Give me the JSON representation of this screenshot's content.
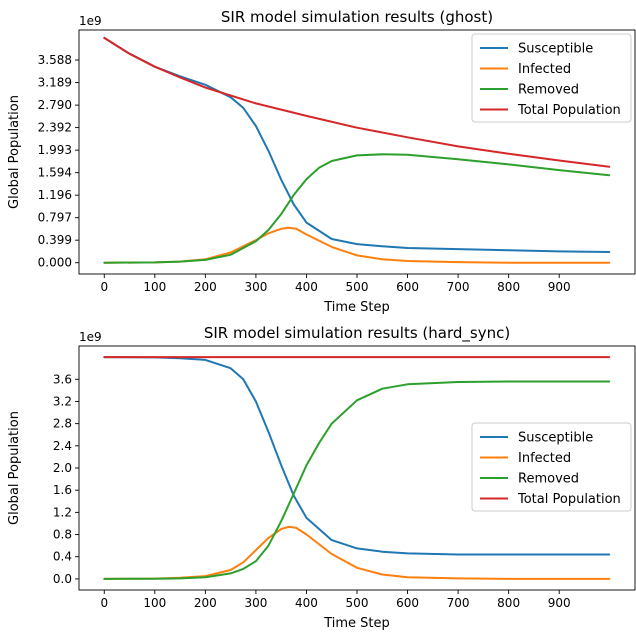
{
  "chart_data": [
    {
      "type": "line",
      "title": "SIR model simulation results (ghost)",
      "xlabel": "Time Step",
      "ylabel": "Global Population",
      "y_offset_label": "1e9",
      "xlim": [
        -50,
        1050
      ],
      "ylim": [
        -0.2,
        4.12
      ],
      "x_ticks": [
        0,
        100,
        200,
        300,
        400,
        500,
        600,
        700,
        800,
        900
      ],
      "y_ticks": [
        0.0,
        0.399,
        0.797,
        1.196,
        1.594,
        1.993,
        2.392,
        2.79,
        3.189,
        3.588
      ],
      "y_tick_labels": [
        "0.000",
        "0.399",
        "0.797",
        "1.196",
        "1.594",
        "1.993",
        "2.392",
        "2.790",
        "3.189",
        "3.588"
      ],
      "legend_position": "top-right",
      "series": [
        {
          "name": "Susceptible",
          "color": "#1f77b4",
          "x": [
            0,
            50,
            100,
            150,
            200,
            250,
            275,
            300,
            325,
            350,
            375,
            400,
            450,
            500,
            550,
            600,
            700,
            800,
            900,
            999
          ],
          "y": [
            3.98,
            3.7,
            3.47,
            3.3,
            3.15,
            2.93,
            2.74,
            2.42,
            1.98,
            1.47,
            1.03,
            0.71,
            0.42,
            0.33,
            0.29,
            0.26,
            0.24,
            0.22,
            0.2,
            0.19
          ]
        },
        {
          "name": "Infected",
          "color": "#ff7f0e",
          "x": [
            0,
            100,
            150,
            200,
            250,
            300,
            325,
            350,
            365,
            380,
            400,
            450,
            500,
            550,
            600,
            700,
            800,
            900,
            999
          ],
          "y": [
            0.0,
            0.005,
            0.02,
            0.06,
            0.18,
            0.4,
            0.52,
            0.6,
            0.62,
            0.6,
            0.5,
            0.28,
            0.13,
            0.06,
            0.03,
            0.01,
            0.0,
            0.0,
            0.0
          ]
        },
        {
          "name": "Removed",
          "color": "#2ca02c",
          "x": [
            0,
            100,
            150,
            200,
            250,
            300,
            325,
            350,
            375,
            400,
            425,
            450,
            500,
            550,
            600,
            700,
            800,
            900,
            999
          ],
          "y": [
            0.0,
            0.005,
            0.02,
            0.05,
            0.14,
            0.38,
            0.58,
            0.86,
            1.2,
            1.48,
            1.68,
            1.8,
            1.9,
            1.92,
            1.91,
            1.83,
            1.74,
            1.64,
            1.55
          ]
        },
        {
          "name": "Total Population",
          "color": "#d62728",
          "x": [
            0,
            50,
            100,
            150,
            200,
            250,
            300,
            400,
            500,
            600,
            700,
            800,
            900,
            999
          ],
          "y": [
            3.98,
            3.7,
            3.47,
            3.28,
            3.1,
            2.96,
            2.82,
            2.6,
            2.39,
            2.22,
            2.06,
            1.93,
            1.81,
            1.7
          ]
        }
      ]
    },
    {
      "type": "line",
      "title": "SIR model simulation results (hard_sync)",
      "xlabel": "Time Step",
      "ylabel": "Global Population",
      "y_offset_label": "1e9",
      "xlim": [
        -50,
        1050
      ],
      "ylim": [
        -0.2,
        4.2
      ],
      "x_ticks": [
        0,
        100,
        200,
        300,
        400,
        500,
        600,
        700,
        800,
        900
      ],
      "y_ticks": [
        0.0,
        0.4,
        0.8,
        1.2,
        1.6,
        2.0,
        2.4,
        2.8,
        3.2,
        3.6
      ],
      "y_tick_labels": [
        "0.0",
        "0.4",
        "0.8",
        "1.2",
        "1.6",
        "2.0",
        "2.4",
        "2.8",
        "3.2",
        "3.6"
      ],
      "legend_position": "center-right",
      "series": [
        {
          "name": "Susceptible",
          "color": "#1f77b4",
          "x": [
            0,
            100,
            150,
            200,
            250,
            275,
            300,
            325,
            350,
            375,
            400,
            450,
            500,
            550,
            600,
            700,
            800,
            900,
            999
          ],
          "y": [
            4.0,
            3.995,
            3.98,
            3.95,
            3.8,
            3.6,
            3.2,
            2.65,
            2.05,
            1.5,
            1.1,
            0.7,
            0.55,
            0.49,
            0.46,
            0.44,
            0.44,
            0.44,
            0.44
          ]
        },
        {
          "name": "Infected",
          "color": "#ff7f0e",
          "x": [
            0,
            100,
            150,
            200,
            250,
            275,
            300,
            325,
            350,
            365,
            380,
            400,
            450,
            500,
            550,
            600,
            700,
            800,
            900,
            999
          ],
          "y": [
            0.0,
            0.005,
            0.02,
            0.05,
            0.16,
            0.3,
            0.52,
            0.74,
            0.9,
            0.94,
            0.92,
            0.8,
            0.45,
            0.2,
            0.08,
            0.03,
            0.01,
            0.0,
            0.0,
            0.0
          ]
        },
        {
          "name": "Removed",
          "color": "#2ca02c",
          "x": [
            0,
            100,
            150,
            200,
            250,
            275,
            300,
            325,
            350,
            375,
            400,
            425,
            450,
            500,
            550,
            600,
            700,
            800,
            900,
            999
          ],
          "y": [
            0.0,
            0.003,
            0.01,
            0.03,
            0.1,
            0.18,
            0.32,
            0.6,
            1.04,
            1.54,
            2.05,
            2.45,
            2.8,
            3.22,
            3.43,
            3.51,
            3.55,
            3.56,
            3.56,
            3.56
          ]
        },
        {
          "name": "Total Population",
          "color": "#d62728",
          "x": [
            0,
            999
          ],
          "y": [
            4.0,
            4.0
          ]
        }
      ]
    }
  ]
}
